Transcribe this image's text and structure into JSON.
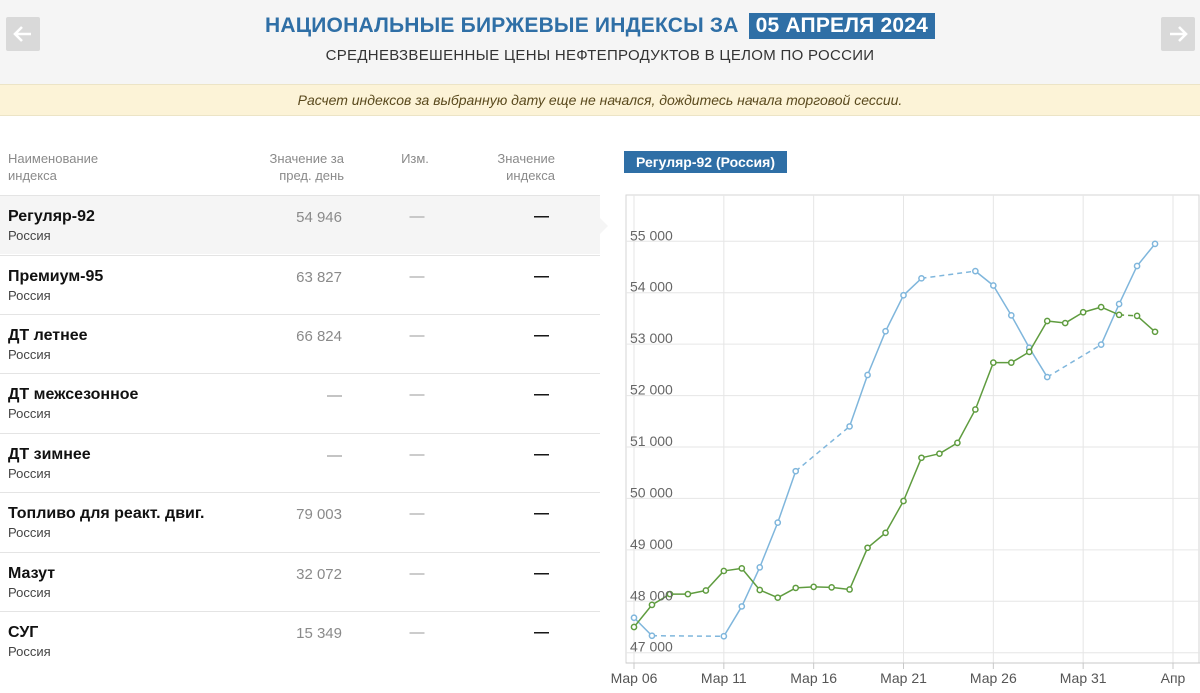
{
  "header": {
    "title": "НАЦИОНАЛЬНЫЕ БИРЖЕВЫЕ ИНДЕКСЫ ЗА",
    "date": "05 АПРЕЛЯ 2024",
    "subtitle": "СРЕДНЕВЗВЕШЕННЫЕ ЦЕНЫ НЕФТЕПРОДУКТОВ В ЦЕЛОМ ПО РОССИИ",
    "prev_icon": "arrow-left-icon",
    "next_icon": "arrow-right-icon"
  },
  "notice": "Расчет индексов за выбранную дату еще не начался, дождитесь начала торговой сессии.",
  "table": {
    "headers": {
      "name": [
        "Наименование",
        "индекса"
      ],
      "prev": [
        "Значение за",
        "пред. день"
      ],
      "change": "Изм.",
      "value": [
        "Значение",
        "индекса"
      ]
    },
    "rows": [
      {
        "name": "Регуляр-92",
        "region": "Россия",
        "prev": "54 946",
        "change": "—",
        "value": "—"
      },
      {
        "name": "Премиум-95",
        "region": "Россия",
        "prev": "63 827",
        "change": "—",
        "value": "—"
      },
      {
        "name": "ДТ летнее",
        "region": "Россия",
        "prev": "66 824",
        "change": "—",
        "value": "—"
      },
      {
        "name": "ДТ межсезонное",
        "region": "Россия",
        "prev": "—",
        "change": "—",
        "value": "—"
      },
      {
        "name": "ДТ зимнее",
        "region": "Россия",
        "prev": "—",
        "change": "—",
        "value": "—"
      },
      {
        "name": "Топливо для реакт. двиг.",
        "region": "Россия",
        "prev": "79 003",
        "change": "—",
        "value": "—"
      },
      {
        "name": "Мазут",
        "region": "Россия",
        "prev": "32 072",
        "change": "—",
        "value": "—"
      },
      {
        "name": "СУГ",
        "region": "Россия",
        "prev": "15 349",
        "change": "—",
        "value": "—"
      }
    ],
    "selected_index": 0
  },
  "chart_data": {
    "type": "line",
    "title": "Регуляр-92 (Россия)",
    "xlabel": "",
    "ylabel": "",
    "x_domain": [
      "2024-03-06",
      "2024-04-05"
    ],
    "x_ticks": [
      {
        "date": "2024-03-06",
        "label": "Мар 06"
      },
      {
        "date": "2024-03-11",
        "label": "Мар 11"
      },
      {
        "date": "2024-03-16",
        "label": "Мар 16"
      },
      {
        "date": "2024-03-21",
        "label": "Мар 21"
      },
      {
        "date": "2024-03-26",
        "label": "Мар 26"
      },
      {
        "date": "2024-03-31",
        "label": "Мар 31"
      },
      {
        "date": "2024-04-05",
        "label": "Апр"
      }
    ],
    "ylim": [
      46800,
      55900
    ],
    "y_ticks": [
      {
        "value": 47000,
        "label": "47 000"
      },
      {
        "value": 48000,
        "label": "48 000"
      },
      {
        "value": 49000,
        "label": "49 000"
      },
      {
        "value": 50000,
        "label": "50 000"
      },
      {
        "value": 51000,
        "label": "51 000"
      },
      {
        "value": 52000,
        "label": "52 000"
      },
      {
        "value": 53000,
        "label": "53 000"
      },
      {
        "value": 54000,
        "label": "54 000"
      },
      {
        "value": 55000,
        "label": "55 000"
      }
    ],
    "grid": true,
    "legend": "none",
    "series": [
      {
        "color": "#7fb6dc",
        "points": [
          [
            "2024-03-06",
            47680
          ],
          [
            "2024-03-07",
            47330
          ],
          [
            "2024-03-11",
            47320
          ],
          [
            "2024-03-12",
            47900
          ],
          [
            "2024-03-13",
            48660
          ],
          [
            "2024-03-14",
            49530
          ],
          [
            "2024-03-15",
            50530
          ],
          [
            "2024-03-18",
            51400
          ],
          [
            "2024-03-19",
            52400
          ],
          [
            "2024-03-20",
            53250
          ],
          [
            "2024-03-21",
            53950
          ],
          [
            "2024-03-22",
            54280
          ],
          [
            "2024-03-25",
            54420
          ],
          [
            "2024-03-26",
            54140
          ],
          [
            "2024-03-27",
            53560
          ],
          [
            "2024-03-28",
            52930
          ],
          [
            "2024-03-29",
            52360
          ],
          [
            "2024-04-01",
            52990
          ],
          [
            "2024-04-02",
            53780
          ],
          [
            "2024-04-03",
            54520
          ],
          [
            "2024-04-04",
            54950
          ]
        ],
        "gaps_after": [
          "2024-03-07",
          "2024-03-15",
          "2024-03-22",
          "2024-03-29"
        ]
      },
      {
        "color": "#5f9c3f",
        "points": [
          [
            "2024-03-06",
            47500
          ],
          [
            "2024-03-07",
            47930
          ],
          [
            "2024-03-08",
            48140
          ],
          [
            "2024-03-09",
            48140
          ],
          [
            "2024-03-10",
            48210
          ],
          [
            "2024-03-11",
            48590
          ],
          [
            "2024-03-12",
            48640
          ],
          [
            "2024-03-13",
            48220
          ],
          [
            "2024-03-14",
            48070
          ],
          [
            "2024-03-15",
            48260
          ],
          [
            "2024-03-16",
            48280
          ],
          [
            "2024-03-17",
            48270
          ],
          [
            "2024-03-18",
            48230
          ],
          [
            "2024-03-19",
            49040
          ],
          [
            "2024-03-20",
            49330
          ],
          [
            "2024-03-21",
            49950
          ],
          [
            "2024-03-22",
            50790
          ],
          [
            "2024-03-23",
            50870
          ],
          [
            "2024-03-24",
            51080
          ],
          [
            "2024-03-25",
            51730
          ],
          [
            "2024-03-26",
            52640
          ],
          [
            "2024-03-27",
            52640
          ],
          [
            "2024-03-28",
            52850
          ],
          [
            "2024-03-29",
            53450
          ],
          [
            "2024-03-30",
            53410
          ],
          [
            "2024-03-31",
            53620
          ],
          [
            "2024-04-01",
            53720
          ],
          [
            "2024-04-02",
            53570
          ],
          [
            "2024-04-03",
            53550
          ],
          [
            "2024-04-04",
            53240
          ]
        ],
        "gaps_after": [
          "2024-04-02"
        ]
      }
    ]
  }
}
